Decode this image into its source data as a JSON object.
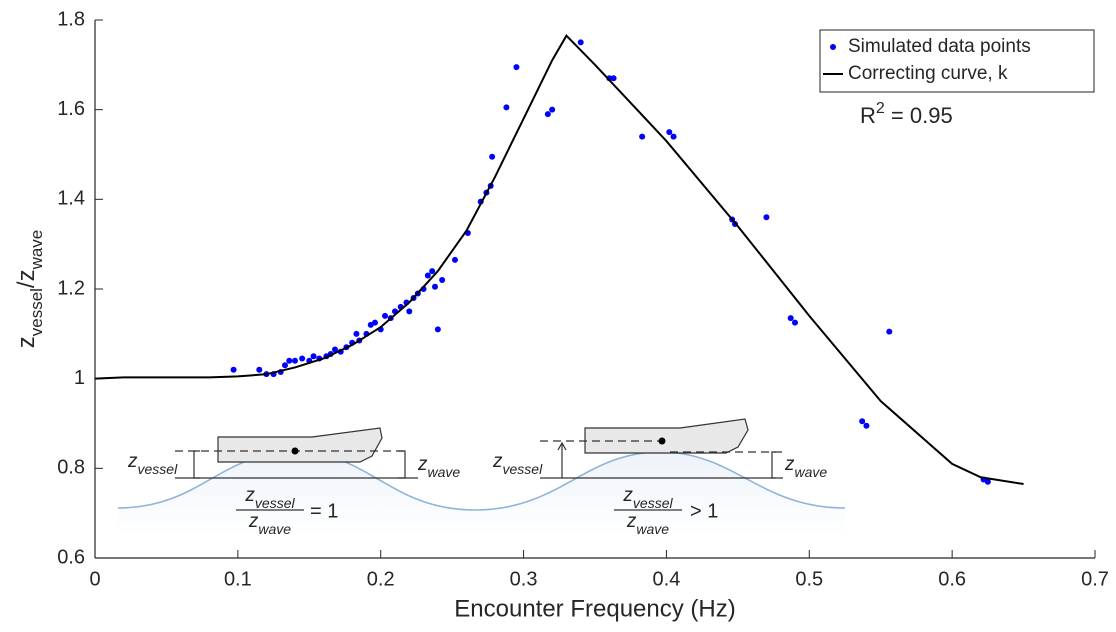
{
  "chart_data": {
    "type": "scatter",
    "xlabel": "Encounter Frequency (Hz)",
    "ylabel": [
      "z",
      "vessel",
      "/z",
      "wave"
    ],
    "annotation": [
      "R",
      "2",
      " = 0.95"
    ],
    "xlim": [
      0,
      0.7
    ],
    "xticks": [
      0,
      0.1,
      0.2,
      0.3,
      0.4,
      0.5,
      0.6,
      0.7
    ],
    "ylim": [
      0.6,
      1.8
    ],
    "yticks": [
      0.6,
      0.8,
      1,
      1.2,
      1.4,
      1.6,
      1.8
    ],
    "grid": false,
    "legend": "top-right",
    "series": [
      {
        "name": "Simulated data points",
        "type": "scatter",
        "color": "#0000ff",
        "x": [
          0.097,
          0.115,
          0.12,
          0.125,
          0.13,
          0.133,
          0.136,
          0.14,
          0.145,
          0.15,
          0.153,
          0.157,
          0.162,
          0.165,
          0.168,
          0.172,
          0.176,
          0.18,
          0.183,
          0.185,
          0.19,
          0.193,
          0.196,
          0.2,
          0.203,
          0.207,
          0.21,
          0.214,
          0.218,
          0.22,
          0.223,
          0.226,
          0.23,
          0.233,
          0.236,
          0.238,
          0.24,
          0.243,
          0.252,
          0.261,
          0.27,
          0.274,
          0.277,
          0.278,
          0.288,
          0.295,
          0.317,
          0.32,
          0.34,
          0.36,
          0.363,
          0.383,
          0.402,
          0.405,
          0.446,
          0.448,
          0.47,
          0.487,
          0.49,
          0.537,
          0.54,
          0.556,
          0.622,
          0.625
        ],
        "values": [
          1.02,
          1.02,
          1.01,
          1.01,
          1.015,
          1.03,
          1.04,
          1.04,
          1.045,
          1.04,
          1.05,
          1.045,
          1.05,
          1.055,
          1.065,
          1.06,
          1.07,
          1.08,
          1.1,
          1.085,
          1.1,
          1.12,
          1.125,
          1.11,
          1.14,
          1.135,
          1.15,
          1.16,
          1.17,
          1.15,
          1.18,
          1.19,
          1.2,
          1.23,
          1.24,
          1.205,
          1.11,
          1.22,
          1.265,
          1.325,
          1.395,
          1.415,
          1.43,
          1.495,
          1.605,
          1.695,
          1.59,
          1.6,
          1.75,
          1.67,
          1.67,
          1.54,
          1.55,
          1.54,
          1.355,
          1.345,
          1.36,
          1.135,
          1.125,
          0.905,
          0.895,
          1.105,
          0.775,
          0.77
        ]
      },
      {
        "name": "Correcting curve, k",
        "type": "line",
        "color": "#000000",
        "x": [
          0,
          0.02,
          0.05,
          0.08,
          0.1,
          0.12,
          0.14,
          0.16,
          0.18,
          0.2,
          0.22,
          0.24,
          0.26,
          0.28,
          0.3,
          0.32,
          0.33,
          0.35,
          0.4,
          0.45,
          0.5,
          0.55,
          0.6,
          0.62,
          0.65
        ],
        "values": [
          1.0,
          1.003,
          1.003,
          1.003,
          1.005,
          1.01,
          1.025,
          1.045,
          1.075,
          1.115,
          1.17,
          1.24,
          1.33,
          1.45,
          1.58,
          1.71,
          1.765,
          1.7,
          1.53,
          1.34,
          1.14,
          0.95,
          0.81,
          0.78,
          0.765
        ]
      }
    ],
    "insets": [
      {
        "left_label": [
          "z",
          "vessel"
        ],
        "right_label": [
          "z",
          "wave"
        ],
        "numerator": [
          "z",
          "vessel"
        ],
        "denominator": [
          "z",
          "wave"
        ],
        "relation": "= 1"
      },
      {
        "left_label": [
          "z",
          "vessel"
        ],
        "right_label": [
          "z",
          "wave"
        ],
        "numerator": [
          "z",
          "vessel"
        ],
        "denominator": [
          "z",
          "wave"
        ],
        "relation": "> 1"
      }
    ]
  }
}
